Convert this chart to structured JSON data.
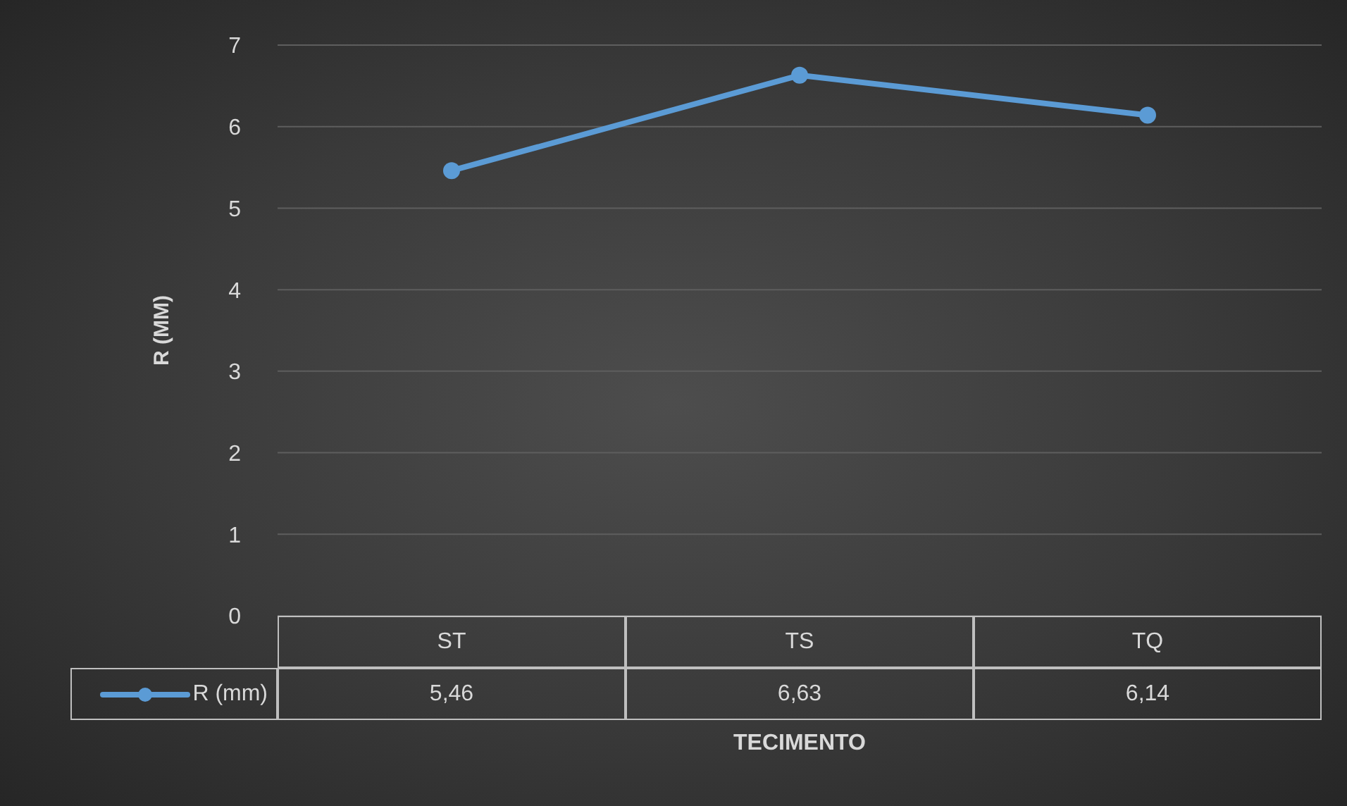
{
  "chart_data": {
    "type": "line",
    "xlabel": "TECIMENTO",
    "ylabel": "R (MM)",
    "categories": [
      "ST",
      "TS",
      "TQ"
    ],
    "series": [
      {
        "name": "R (mm)",
        "color": "#5b9bd5",
        "values": [
          5.46,
          6.63,
          6.14
        ],
        "value_labels": [
          "5,46",
          "6,63",
          "6,14"
        ]
      }
    ],
    "ylim": [
      0,
      7
    ],
    "yticks": [
      0,
      1,
      2,
      3,
      4,
      5,
      6,
      7
    ],
    "grid": "y",
    "legend": "bottom",
    "marker": "circle"
  }
}
